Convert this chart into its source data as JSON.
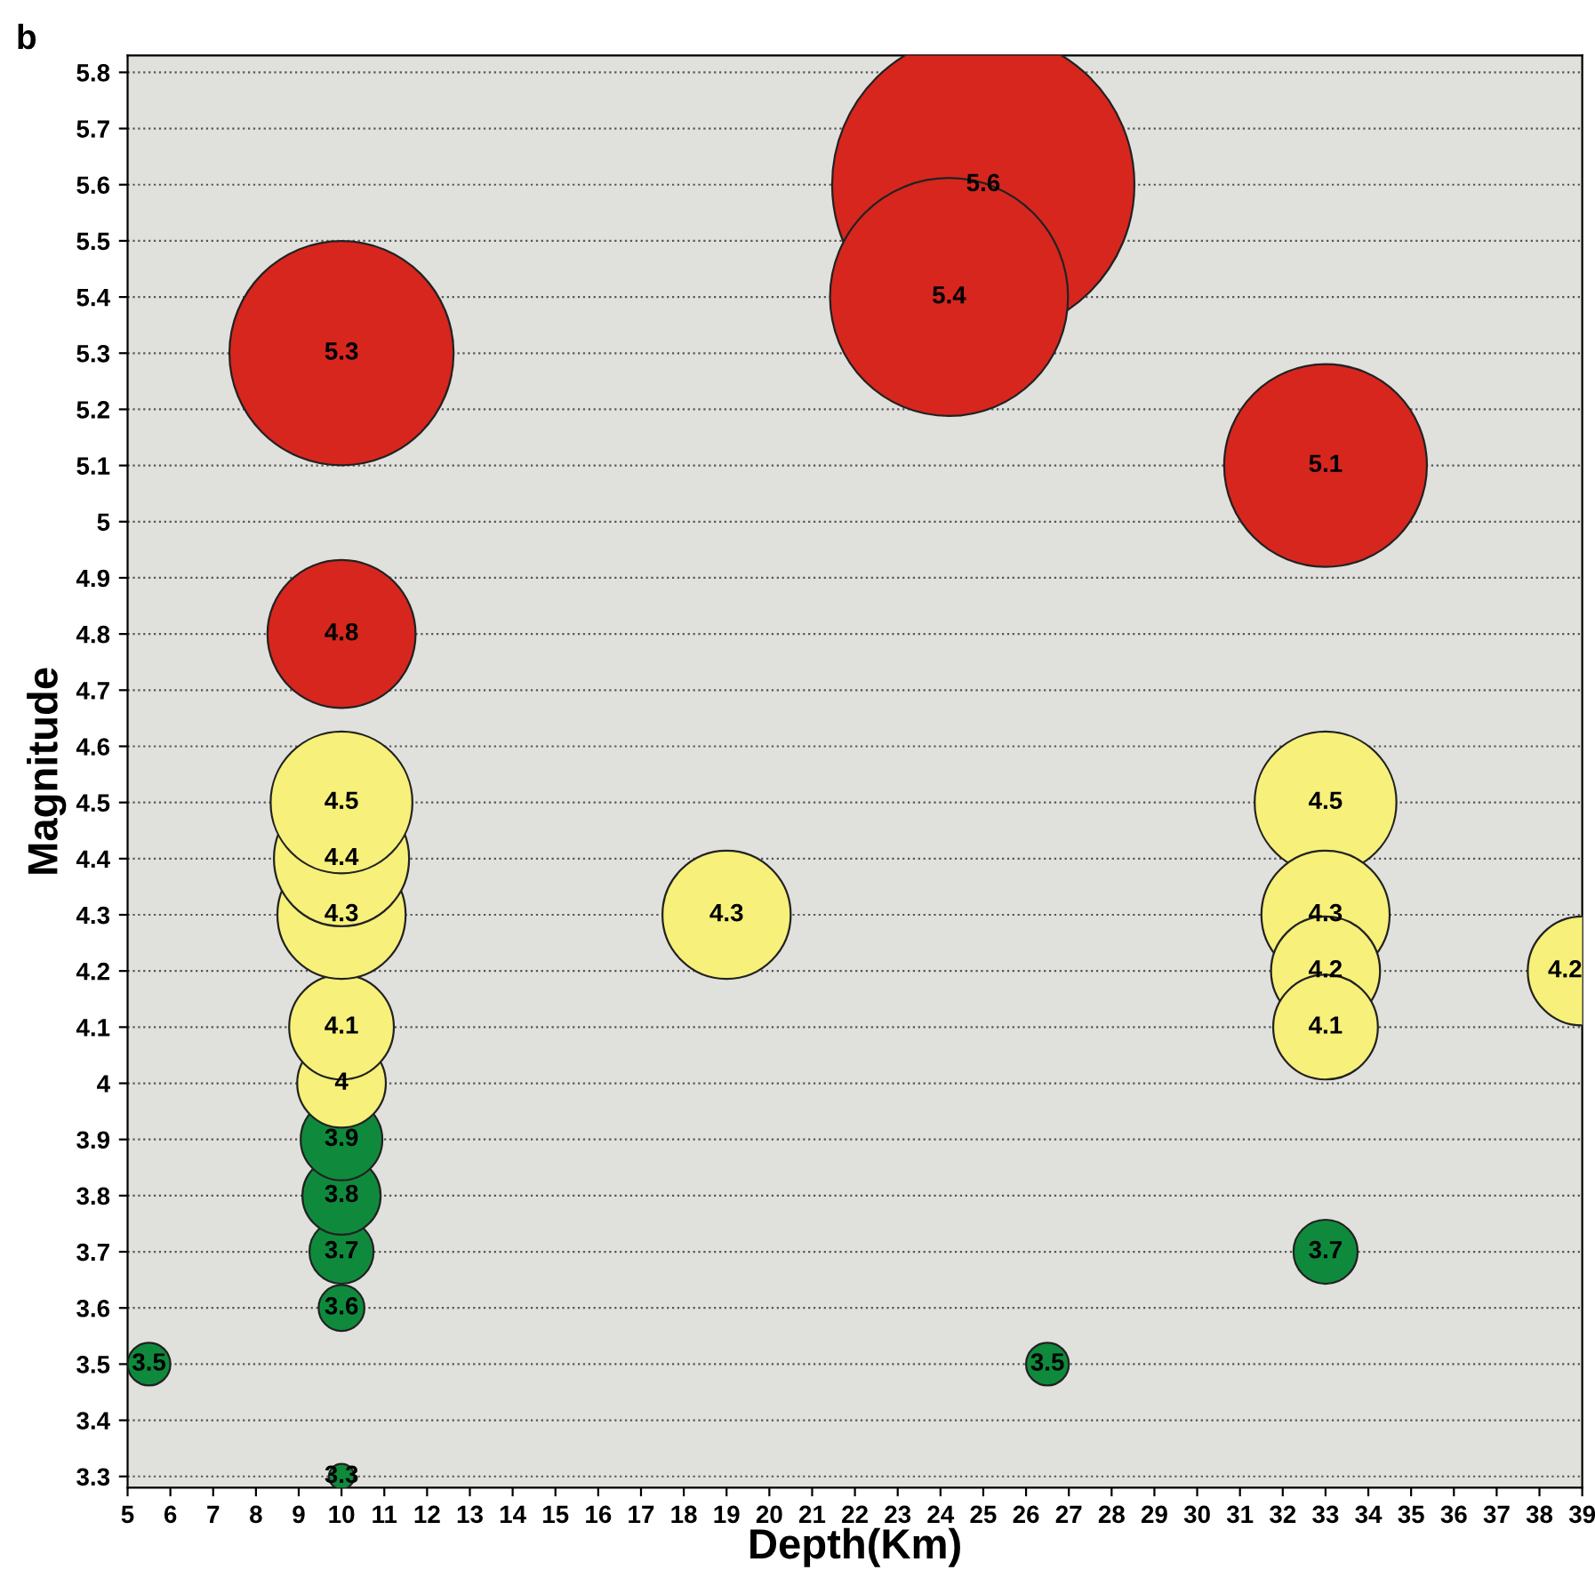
{
  "chart_data": {
    "type": "bubble",
    "title": "b",
    "xlabel": "Depth(Km)",
    "ylabel": "Magnitude",
    "x": [
      5.5,
      10,
      10,
      10,
      10,
      10,
      10,
      10,
      10,
      10,
      10,
      10,
      10,
      19,
      25,
      24.2,
      26.5,
      33,
      33,
      33,
      33,
      33,
      33,
      39
    ],
    "values": [
      3.5,
      3.3,
      3.6,
      3.7,
      3.8,
      3.9,
      4,
      4.1,
      4.3,
      4.4,
      4.5,
      4.8,
      5.3,
      4.3,
      5.6,
      5.4,
      3.5,
      5.1,
      4.5,
      4.3,
      4.2,
      4.1,
      3.7,
      4.2
    ],
    "sizes": [
      0.02,
      0.007,
      0.023,
      0.045,
      0.067,
      0.073,
      0.086,
      0.12,
      0.18,
      0.2,
      0.22,
      0.24,
      0.55,
      0.18,
      1,
      0.62,
      0.02,
      0.45,
      0.22,
      0.18,
      0.13,
      0.12,
      0.045,
      0.13
    ],
    "colors": [
      "#0f8a3c",
      "#0f8a3c",
      "#0f8a3c",
      "#0f8a3c",
      "#0f8a3c",
      "#0f8a3c",
      "#f7f07a",
      "#f7f07a",
      "#f7f07a",
      "#f7f07a",
      "#f7f07a",
      "#d7261e",
      "#d7261e",
      "#f7f07a",
      "#d7261e",
      "#d7261e",
      "#0f8a3c",
      "#d7261e",
      "#f7f07a",
      "#f7f07a",
      "#f7f07a",
      "#f7f07a",
      "#0f8a3c",
      "#f7f07a"
    ],
    "data_labels": true,
    "xlim": [
      5,
      39
    ],
    "xticks": [
      5,
      6,
      7,
      8,
      9,
      10,
      11,
      12,
      13,
      14,
      15,
      16,
      17,
      18,
      19,
      20,
      21,
      22,
      23,
      24,
      25,
      26,
      27,
      28,
      29,
      30,
      31,
      32,
      33,
      34,
      35,
      36,
      37,
      38,
      39
    ],
    "ylim": [
      3.28,
      5.83
    ],
    "yticks": [
      3.3,
      3.4,
      3.5,
      3.6,
      3.7,
      3.8,
      3.9,
      4,
      4.1,
      4.2,
      4.3,
      4.4,
      4.5,
      4.6,
      4.7,
      4.8,
      4.9,
      5,
      5.1,
      5.2,
      5.3,
      5.4,
      5.5,
      5.6,
      5.7,
      5.8
    ],
    "grid": "y"
  }
}
